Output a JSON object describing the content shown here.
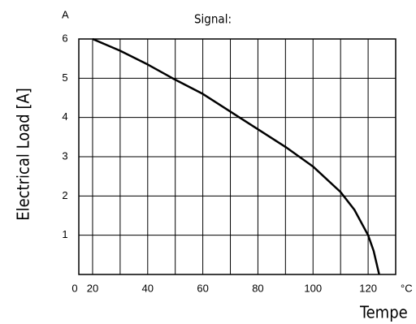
{
  "chart_data": {
    "type": "line",
    "title": "Signal:",
    "y_unit": "A",
    "x_unit": "°C",
    "ylabel": "Electrical Load [A]",
    "xlabel": "Tempe",
    "origin_label": "0",
    "x": [
      20,
      30,
      40,
      49,
      60,
      70,
      80,
      90,
      100,
      110,
      115,
      120,
      122,
      124
    ],
    "series": [
      {
        "name": "load",
        "color": "#000000",
        "values": [
          6,
          5.7,
          5.35,
          5,
          4.6,
          4.15,
          3.7,
          3.25,
          2.75,
          2.1,
          1.65,
          1.0,
          0.6,
          0
        ]
      }
    ],
    "xlim": [
      15,
      130
    ],
    "ylim": [
      0,
      6
    ],
    "xticks": [
      20,
      40,
      60,
      80,
      100,
      120
    ],
    "xgrid": [
      20,
      30,
      40,
      50,
      60,
      70,
      80,
      90,
      100,
      110,
      120,
      130
    ],
    "yticks": [
      1,
      2,
      3,
      4,
      5,
      6
    ],
    "grid": true
  }
}
